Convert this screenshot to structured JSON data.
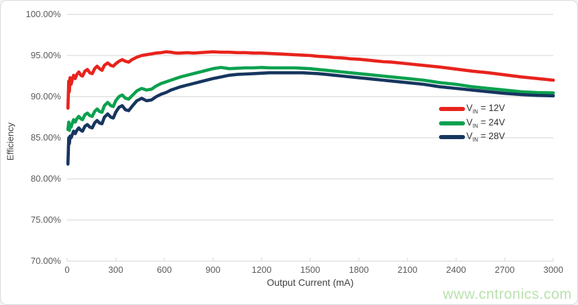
{
  "colors": {
    "grid": "#dcdcdc",
    "axis_label": "#595959",
    "axis_title": "#404040",
    "watermark_green": "#b9e2ad",
    "series_red": "#e8231d",
    "series_green": "#0ba14f",
    "series_navy": "#17365f"
  },
  "watermark": "www.cntronics.com",
  "chart_data": {
    "type": "line",
    "title": "",
    "xlabel": "Output Current (mA)",
    "ylabel": "Efficiency",
    "xlim": [
      0,
      3000
    ],
    "ylim": [
      70,
      100
    ],
    "grid": "horizontal",
    "legend_position": "right-middle",
    "x_ticks": [
      {
        "v": 0,
        "label": "0"
      },
      {
        "v": 300,
        "label": "300"
      },
      {
        "v": 600,
        "label": "600"
      },
      {
        "v": 900,
        "label": "900"
      },
      {
        "v": 1200,
        "label": "1200"
      },
      {
        "v": 1500,
        "label": "1500"
      },
      {
        "v": 1800,
        "label": "1800"
      },
      {
        "v": 2100,
        "label": "2100"
      },
      {
        "v": 2400,
        "label": "2400"
      },
      {
        "v": 2700,
        "label": "2700"
      },
      {
        "v": 3000,
        "label": "3000"
      }
    ],
    "y_ticks": [
      {
        "v": 100,
        "label": "100.00%"
      },
      {
        "v": 95,
        "label": "95.00%"
      },
      {
        "v": 90,
        "label": "90.00%"
      },
      {
        "v": 85,
        "label": "85.00%"
      },
      {
        "v": 80,
        "label": "80.00%"
      },
      {
        "v": 75,
        "label": "75.00%"
      },
      {
        "v": 70,
        "label": "70.00%"
      }
    ],
    "series": [
      {
        "id": "vin-12v",
        "name": "VIN = 12V",
        "label": {
          "prefix": "V",
          "sub": "IN",
          "suffix": "= 12V"
        },
        "color": "#e8231d",
        "points": [
          [
            5,
            88.6
          ],
          [
            10,
            91.9
          ],
          [
            14,
            90.6
          ],
          [
            18,
            92.3
          ],
          [
            25,
            91.5
          ],
          [
            32,
            92.1
          ],
          [
            40,
            92.6
          ],
          [
            50,
            92.2
          ],
          [
            60,
            92.7
          ],
          [
            72,
            93.0
          ],
          [
            85,
            92.6
          ],
          [
            95,
            92.5
          ],
          [
            110,
            93.1
          ],
          [
            125,
            93.3
          ],
          [
            140,
            92.9
          ],
          [
            155,
            92.8
          ],
          [
            170,
            93.4
          ],
          [
            185,
            93.7
          ],
          [
            200,
            93.4
          ],
          [
            215,
            93.2
          ],
          [
            230,
            93.8
          ],
          [
            250,
            94.1
          ],
          [
            270,
            93.8
          ],
          [
            285,
            93.7
          ],
          [
            300,
            94.0
          ],
          [
            320,
            94.3
          ],
          [
            340,
            94.5
          ],
          [
            360,
            94.3
          ],
          [
            380,
            94.2
          ],
          [
            400,
            94.5
          ],
          [
            430,
            94.8
          ],
          [
            460,
            95.0
          ],
          [
            490,
            95.1
          ],
          [
            520,
            95.2
          ],
          [
            550,
            95.3
          ],
          [
            580,
            95.35
          ],
          [
            610,
            95.45
          ],
          [
            640,
            95.4
          ],
          [
            670,
            95.3
          ],
          [
            700,
            95.3
          ],
          [
            740,
            95.35
          ],
          [
            780,
            95.3
          ],
          [
            820,
            95.35
          ],
          [
            860,
            95.4
          ],
          [
            900,
            95.45
          ],
          [
            950,
            95.4
          ],
          [
            1000,
            95.4
          ],
          [
            1050,
            95.35
          ],
          [
            1100,
            95.35
          ],
          [
            1150,
            95.3
          ],
          [
            1200,
            95.3
          ],
          [
            1250,
            95.25
          ],
          [
            1300,
            95.2
          ],
          [
            1350,
            95.15
          ],
          [
            1400,
            95.1
          ],
          [
            1450,
            95.05
          ],
          [
            1500,
            95.0
          ],
          [
            1550,
            94.9
          ],
          [
            1600,
            94.85
          ],
          [
            1650,
            94.75
          ],
          [
            1700,
            94.7
          ],
          [
            1750,
            94.6
          ],
          [
            1800,
            94.55
          ],
          [
            1850,
            94.45
          ],
          [
            1900,
            94.35
          ],
          [
            1950,
            94.25
          ],
          [
            2000,
            94.2
          ],
          [
            2100,
            94.0
          ],
          [
            2200,
            93.8
          ],
          [
            2300,
            93.6
          ],
          [
            2400,
            93.35
          ],
          [
            2500,
            93.1
          ],
          [
            2600,
            92.9
          ],
          [
            2700,
            92.65
          ],
          [
            2800,
            92.4
          ],
          [
            2900,
            92.2
          ],
          [
            3000,
            92.0
          ]
        ]
      },
      {
        "id": "vin-24v",
        "name": "VIN = 24V",
        "label": {
          "prefix": "V",
          "sub": "IN",
          "suffix": "= 24V"
        },
        "color": "#0ba14f",
        "points": [
          [
            5,
            86.0
          ],
          [
            10,
            86.9
          ],
          [
            14,
            85.9
          ],
          [
            18,
            86.6
          ],
          [
            25,
            86.3
          ],
          [
            32,
            86.8
          ],
          [
            40,
            87.2
          ],
          [
            50,
            86.9
          ],
          [
            60,
            87.3
          ],
          [
            72,
            87.6
          ],
          [
            85,
            87.3
          ],
          [
            95,
            87.2
          ],
          [
            110,
            87.8
          ],
          [
            125,
            88.0
          ],
          [
            140,
            87.7
          ],
          [
            155,
            87.6
          ],
          [
            170,
            88.2
          ],
          [
            185,
            88.5
          ],
          [
            200,
            88.2
          ],
          [
            215,
            88.1
          ],
          [
            230,
            88.9
          ],
          [
            250,
            89.3
          ],
          [
            270,
            88.9
          ],
          [
            285,
            88.8
          ],
          [
            300,
            89.5
          ],
          [
            320,
            90.0
          ],
          [
            340,
            90.2
          ],
          [
            360,
            89.8
          ],
          [
            380,
            89.7
          ],
          [
            400,
            90.1
          ],
          [
            430,
            90.7
          ],
          [
            460,
            91.0
          ],
          [
            490,
            90.8
          ],
          [
            520,
            90.9
          ],
          [
            550,
            91.3
          ],
          [
            580,
            91.6
          ],
          [
            610,
            91.8
          ],
          [
            640,
            92.0
          ],
          [
            670,
            92.2
          ],
          [
            700,
            92.4
          ],
          [
            740,
            92.6
          ],
          [
            780,
            92.8
          ],
          [
            820,
            93.0
          ],
          [
            860,
            93.2
          ],
          [
            900,
            93.4
          ],
          [
            950,
            93.55
          ],
          [
            1000,
            93.4
          ],
          [
            1050,
            93.45
          ],
          [
            1100,
            93.5
          ],
          [
            1150,
            93.5
          ],
          [
            1200,
            93.55
          ],
          [
            1250,
            93.5
          ],
          [
            1300,
            93.5
          ],
          [
            1350,
            93.5
          ],
          [
            1400,
            93.5
          ],
          [
            1450,
            93.45
          ],
          [
            1500,
            93.4
          ],
          [
            1550,
            93.3
          ],
          [
            1600,
            93.2
          ],
          [
            1650,
            93.1
          ],
          [
            1700,
            93.0
          ],
          [
            1750,
            92.9
          ],
          [
            1800,
            92.8
          ],
          [
            1850,
            92.7
          ],
          [
            1900,
            92.6
          ],
          [
            1950,
            92.5
          ],
          [
            2000,
            92.4
          ],
          [
            2100,
            92.2
          ],
          [
            2200,
            92.0
          ],
          [
            2300,
            91.7
          ],
          [
            2400,
            91.5
          ],
          [
            2500,
            91.2
          ],
          [
            2600,
            91.0
          ],
          [
            2700,
            90.8
          ],
          [
            2800,
            90.6
          ],
          [
            2900,
            90.5
          ],
          [
            3000,
            90.45
          ]
        ]
      },
      {
        "id": "vin-28v",
        "name": "VIN = 28V",
        "label": {
          "prefix": "V",
          "sub": "IN",
          "suffix": "= 28V"
        },
        "color": "#17365f",
        "points": [
          [
            5,
            81.8
          ],
          [
            10,
            85.0
          ],
          [
            14,
            84.3
          ],
          [
            18,
            85.2
          ],
          [
            25,
            85.0
          ],
          [
            32,
            85.4
          ],
          [
            40,
            85.8
          ],
          [
            50,
            85.5
          ],
          [
            60,
            85.9
          ],
          [
            72,
            86.2
          ],
          [
            85,
            85.9
          ],
          [
            95,
            85.8
          ],
          [
            110,
            86.4
          ],
          [
            125,
            86.6
          ],
          [
            140,
            86.3
          ],
          [
            155,
            86.2
          ],
          [
            170,
            86.8
          ],
          [
            185,
            87.1
          ],
          [
            200,
            86.8
          ],
          [
            215,
            86.7
          ],
          [
            230,
            87.5
          ],
          [
            250,
            87.9
          ],
          [
            270,
            87.5
          ],
          [
            285,
            87.4
          ],
          [
            300,
            88.1
          ],
          [
            320,
            88.7
          ],
          [
            340,
            88.9
          ],
          [
            360,
            88.4
          ],
          [
            380,
            88.3
          ],
          [
            400,
            88.8
          ],
          [
            430,
            89.5
          ],
          [
            460,
            89.8
          ],
          [
            490,
            89.5
          ],
          [
            520,
            89.6
          ],
          [
            550,
            90.0
          ],
          [
            580,
            90.3
          ],
          [
            610,
            90.5
          ],
          [
            640,
            90.8
          ],
          [
            670,
            91.0
          ],
          [
            700,
            91.2
          ],
          [
            740,
            91.4
          ],
          [
            780,
            91.6
          ],
          [
            820,
            91.8
          ],
          [
            860,
            92.0
          ],
          [
            900,
            92.2
          ],
          [
            950,
            92.4
          ],
          [
            1000,
            92.6
          ],
          [
            1050,
            92.7
          ],
          [
            1100,
            92.75
          ],
          [
            1150,
            92.8
          ],
          [
            1200,
            92.85
          ],
          [
            1250,
            92.9
          ],
          [
            1300,
            92.9
          ],
          [
            1350,
            92.9
          ],
          [
            1400,
            92.9
          ],
          [
            1450,
            92.9
          ],
          [
            1500,
            92.85
          ],
          [
            1550,
            92.8
          ],
          [
            1600,
            92.7
          ],
          [
            1650,
            92.6
          ],
          [
            1700,
            92.5
          ],
          [
            1750,
            92.4
          ],
          [
            1800,
            92.3
          ],
          [
            1850,
            92.2
          ],
          [
            1900,
            92.1
          ],
          [
            1950,
            92.0
          ],
          [
            2000,
            91.9
          ],
          [
            2100,
            91.7
          ],
          [
            2200,
            91.5
          ],
          [
            2300,
            91.2
          ],
          [
            2400,
            91.0
          ],
          [
            2500,
            90.8
          ],
          [
            2600,
            90.6
          ],
          [
            2700,
            90.4
          ],
          [
            2800,
            90.25
          ],
          [
            2900,
            90.15
          ],
          [
            3000,
            90.1
          ]
        ]
      }
    ]
  }
}
